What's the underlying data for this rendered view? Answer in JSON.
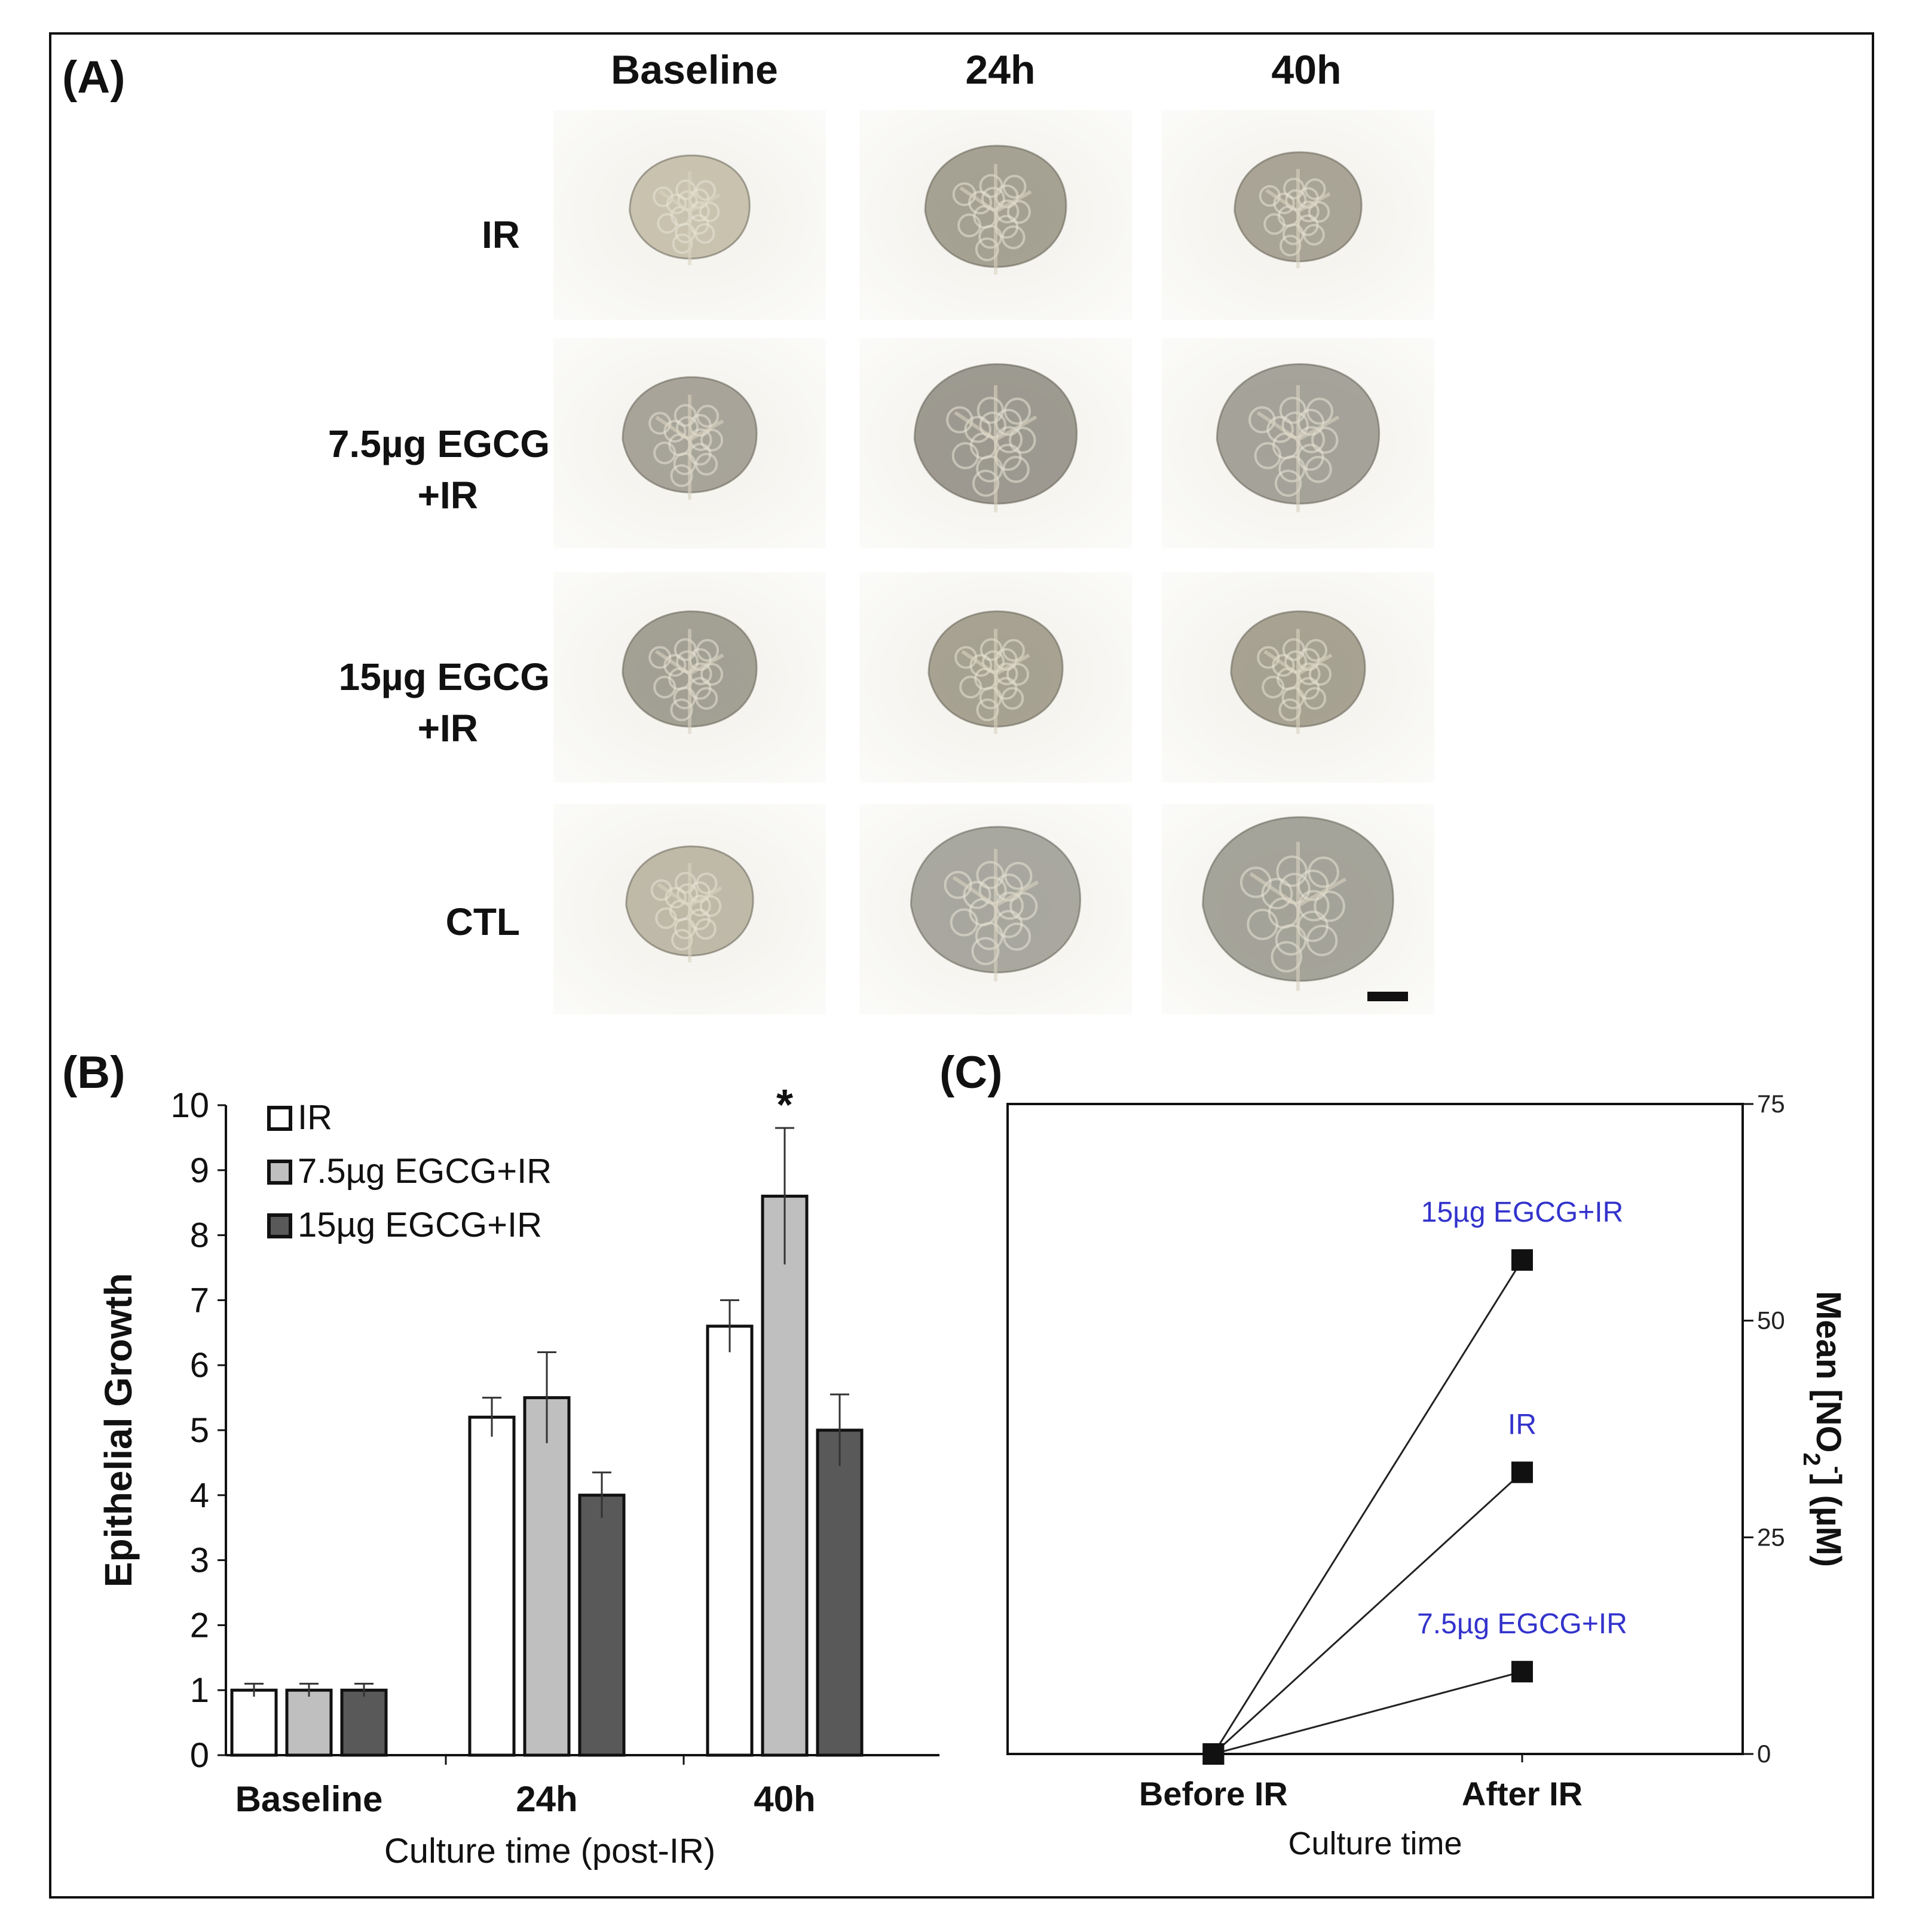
{
  "panel_a": {
    "label": "(A)",
    "columns": [
      "Baseline",
      "24h",
      "40h"
    ],
    "rows": [
      {
        "line1": "IR",
        "line2": ""
      },
      {
        "line1": "7.5µg EGCG",
        "line2": "+IR"
      },
      {
        "line1": "15µg EGCG",
        "line2": "+IR"
      },
      {
        "line1": "CTL",
        "line2": ""
      }
    ],
    "scale_bar_color": "#111111"
  },
  "panel_b": {
    "label": "(B)",
    "chart_data": {
      "type": "bar",
      "categories": [
        "Baseline",
        "24h",
        "40h"
      ],
      "series": [
        {
          "name": "IR",
          "values": [
            1.0,
            5.2,
            6.6
          ],
          "errors": [
            0.1,
            0.3,
            0.4
          ],
          "color": "#ffffff"
        },
        {
          "name": "7.5µg EGCG+IR",
          "values": [
            1.0,
            5.5,
            8.6
          ],
          "errors": [
            0.1,
            0.7,
            1.05
          ],
          "color": "#bfbfbf"
        },
        {
          "name": "15µg EGCG+IR",
          "values": [
            1.0,
            4.0,
            5.0
          ],
          "errors": [
            0.1,
            0.35,
            0.55
          ],
          "color": "#595959"
        }
      ],
      "ylabel": "Epithelial Growth",
      "xlabel": "Culture time (post-IR)",
      "ylim": [
        0,
        10
      ],
      "yticks": [
        "0",
        "1",
        "2",
        "3",
        "4",
        "5",
        "6",
        "7",
        "8",
        "9",
        "10"
      ],
      "annotation": "*",
      "legend_position": "top-left"
    }
  },
  "panel_c": {
    "label": "(C)",
    "chart_data": {
      "type": "line",
      "categories": [
        "Before IR",
        "After IR"
      ],
      "series": [
        {
          "name": "15µg EGCG+IR",
          "values": [
            0,
            57
          ]
        },
        {
          "name": "IR",
          "values": [
            0,
            32.5
          ]
        },
        {
          "name": "7.5µg EGCG+IR",
          "values": [
            0,
            9.5
          ]
        }
      ],
      "xlabel": "Culture time",
      "ylabel_prefix": "Mean [NO",
      "ylabel_sub": "2",
      "ylabel_sup": "-",
      "ylabel_suffix": "] (µM)",
      "ylim": [
        0,
        75
      ],
      "yticks": [
        "0",
        "25",
        "50",
        "75"
      ],
      "y_axis_side": "right",
      "series_label_color": "#3333cc",
      "line_color": "#222222"
    }
  }
}
